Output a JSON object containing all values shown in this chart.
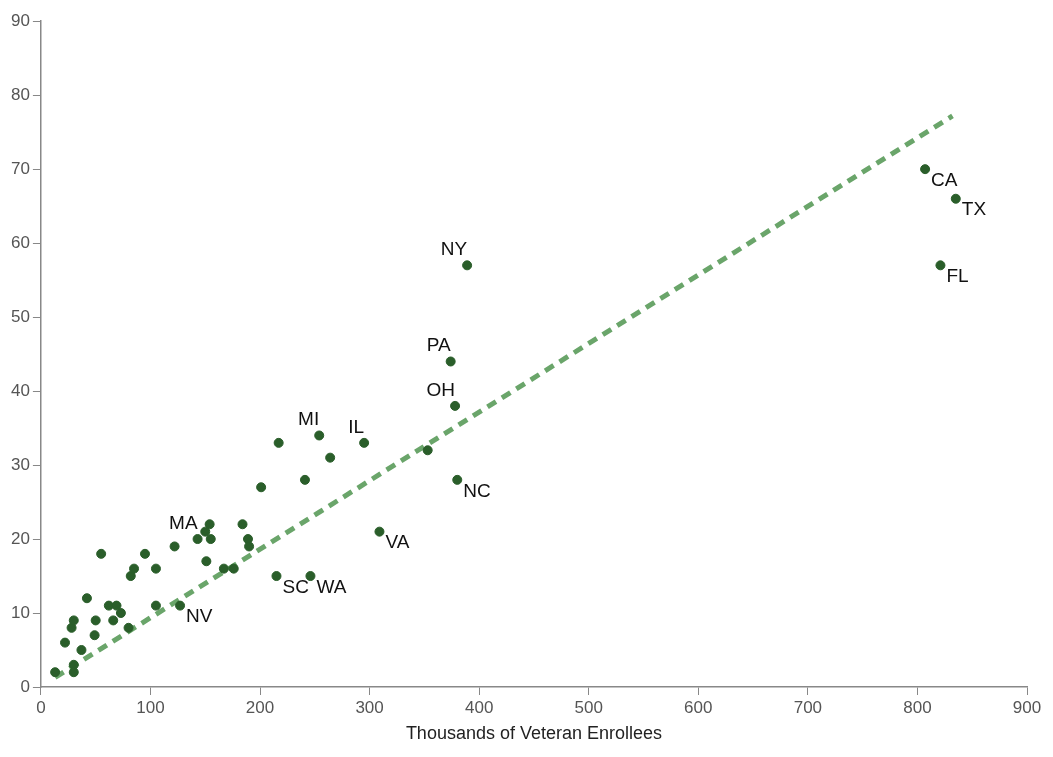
{
  "chart_data": {
    "type": "scatter",
    "xlabel": "Thousands of Veteran Enrollees",
    "xlim": [
      0,
      900
    ],
    "xticks": [
      0,
      100,
      200,
      300,
      400,
      500,
      600,
      700,
      800,
      900
    ],
    "ylim": [
      0,
      90
    ],
    "yticks": [
      0,
      10,
      20,
      30,
      40,
      50,
      60,
      70,
      80,
      90
    ],
    "grid": false,
    "legend": false,
    "marker": "circle",
    "series": [
      {
        "color": "#2a5e2a",
        "x": [
          13,
          30,
          30,
          22,
          37,
          28,
          30,
          49,
          50,
          42,
          62,
          69,
          73,
          66,
          80,
          55,
          82,
          85,
          95,
          105,
          105,
          127,
          122,
          143,
          155,
          150,
          154,
          151,
          167,
          176,
          184,
          189,
          190,
          201,
          217,
          215,
          254,
          264,
          241,
          295,
          353,
          380,
          309,
          246,
          389,
          374,
          378,
          807,
          835,
          821
        ],
        "values": [
          2,
          3,
          2,
          6,
          5,
          8,
          9,
          7,
          9,
          12,
          11,
          11,
          10,
          9,
          8,
          18,
          15,
          16,
          18,
          16,
          11,
          11,
          19,
          20,
          20,
          21,
          22,
          17,
          16,
          16,
          22,
          20,
          19,
          27,
          33,
          15,
          34,
          31,
          28,
          33,
          32,
          28,
          21,
          15,
          57,
          44,
          38,
          70,
          66,
          57
        ]
      },
      {
        "type": "line",
        "color": "#6aa56a",
        "line_style": "dashed",
        "marker": "none",
        "x": [
          13,
          832
        ],
        "values": [
          1.3,
          77.2
        ]
      }
    ],
    "annotations": [
      {
        "text": "NV",
        "x": 127,
        "y": 11
      },
      {
        "text": "MA",
        "x": 143,
        "y": 20
      },
      {
        "text": "SC",
        "x": 215,
        "y": 15
      },
      {
        "text": "WA",
        "x": 246,
        "y": 15
      },
      {
        "text": "MI",
        "x": 254,
        "y": 34
      },
      {
        "text": "IL",
        "x": 295,
        "y": 33
      },
      {
        "text": "VA",
        "x": 309,
        "y": 21
      },
      {
        "text": "NC",
        "x": 380,
        "y": 28
      },
      {
        "text": "OH",
        "x": 378,
        "y": 38
      },
      {
        "text": "PA",
        "x": 374,
        "y": 44
      },
      {
        "text": "NY",
        "x": 389,
        "y": 57
      },
      {
        "text": "CA",
        "x": 807,
        "y": 70
      },
      {
        "text": "TX",
        "x": 835,
        "y": 66
      },
      {
        "text": "FL",
        "x": 821,
        "y": 57
      }
    ]
  }
}
